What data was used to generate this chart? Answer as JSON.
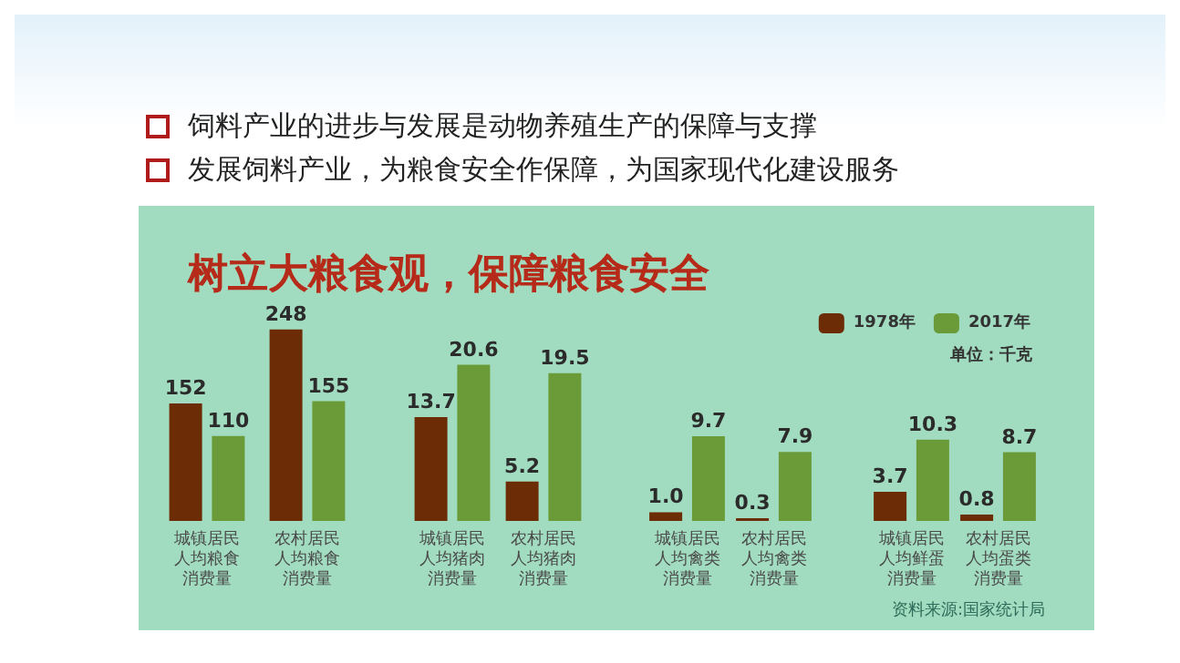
{
  "chart_data": [
    {
      "type": "bar",
      "title": "树立大粮食观，保障粮食安全",
      "annotations": [
        "饲料产业的进步与发展是动物养殖生产的保障与支撑",
        "发展饲料产业，为粮食安全作保障，为国家现代化建设服务"
      ],
      "categories": [
        "城镇居民人均粮食消费量",
        "农村居民人均粮食消费量"
      ],
      "legend": "top right",
      "series": [
        {
          "name": "1978年",
          "color": "#6b2c06",
          "values": [
            152,
            248
          ],
          "value_labels": [
            "152",
            "248"
          ]
        },
        {
          "name": "2017年",
          "color": "#6a9b38",
          "values": [
            110,
            155
          ],
          "value_labels": [
            "110",
            "155"
          ]
        }
      ]
    },
    {
      "type": "bar",
      "categories": [
        "城镇居民人均猪肉消费量",
        "农村居民人均猪肉消费量"
      ],
      "series": [
        {
          "color": "#6b2c06",
          "values": [
            13.7,
            5.2
          ],
          "value_labels": [
            "13.7",
            "5.2"
          ]
        },
        {
          "color": "#6a9b38",
          "values": [
            20.6,
            19.5
          ],
          "value_labels": [
            "20.6",
            "19.5"
          ]
        }
      ]
    },
    {
      "type": "bar",
      "categories": [
        "城镇居民人均禽类消费量",
        "农村居民人均禽类消费量"
      ],
      "series": [
        {
          "color": "#6b2c06",
          "values": [
            1.0,
            0.3
          ],
          "value_labels": [
            "1.0",
            "0.3"
          ]
        },
        {
          "color": "#6a9b38",
          "values": [
            9.7,
            7.9
          ],
          "value_labels": [
            "9.7",
            "7.9"
          ]
        }
      ]
    },
    {
      "type": "bar",
      "subtitle": "单位：千克",
      "categories": [
        "城镇居民人均鲜蛋消费量",
        "农村居民人均蛋类消费量"
      ],
      "annotations": [
        "资料来源:国家统计局"
      ],
      "series": [
        {
          "color": "#6b2c06",
          "values": [
            3.7,
            0.8
          ],
          "value_labels": [
            "3.7",
            "0.8"
          ]
        },
        {
          "color": "#6a9b38",
          "values": [
            10.3,
            8.7
          ],
          "value_labels": [
            "10.3",
            "8.7"
          ]
        }
      ]
    }
  ]
}
